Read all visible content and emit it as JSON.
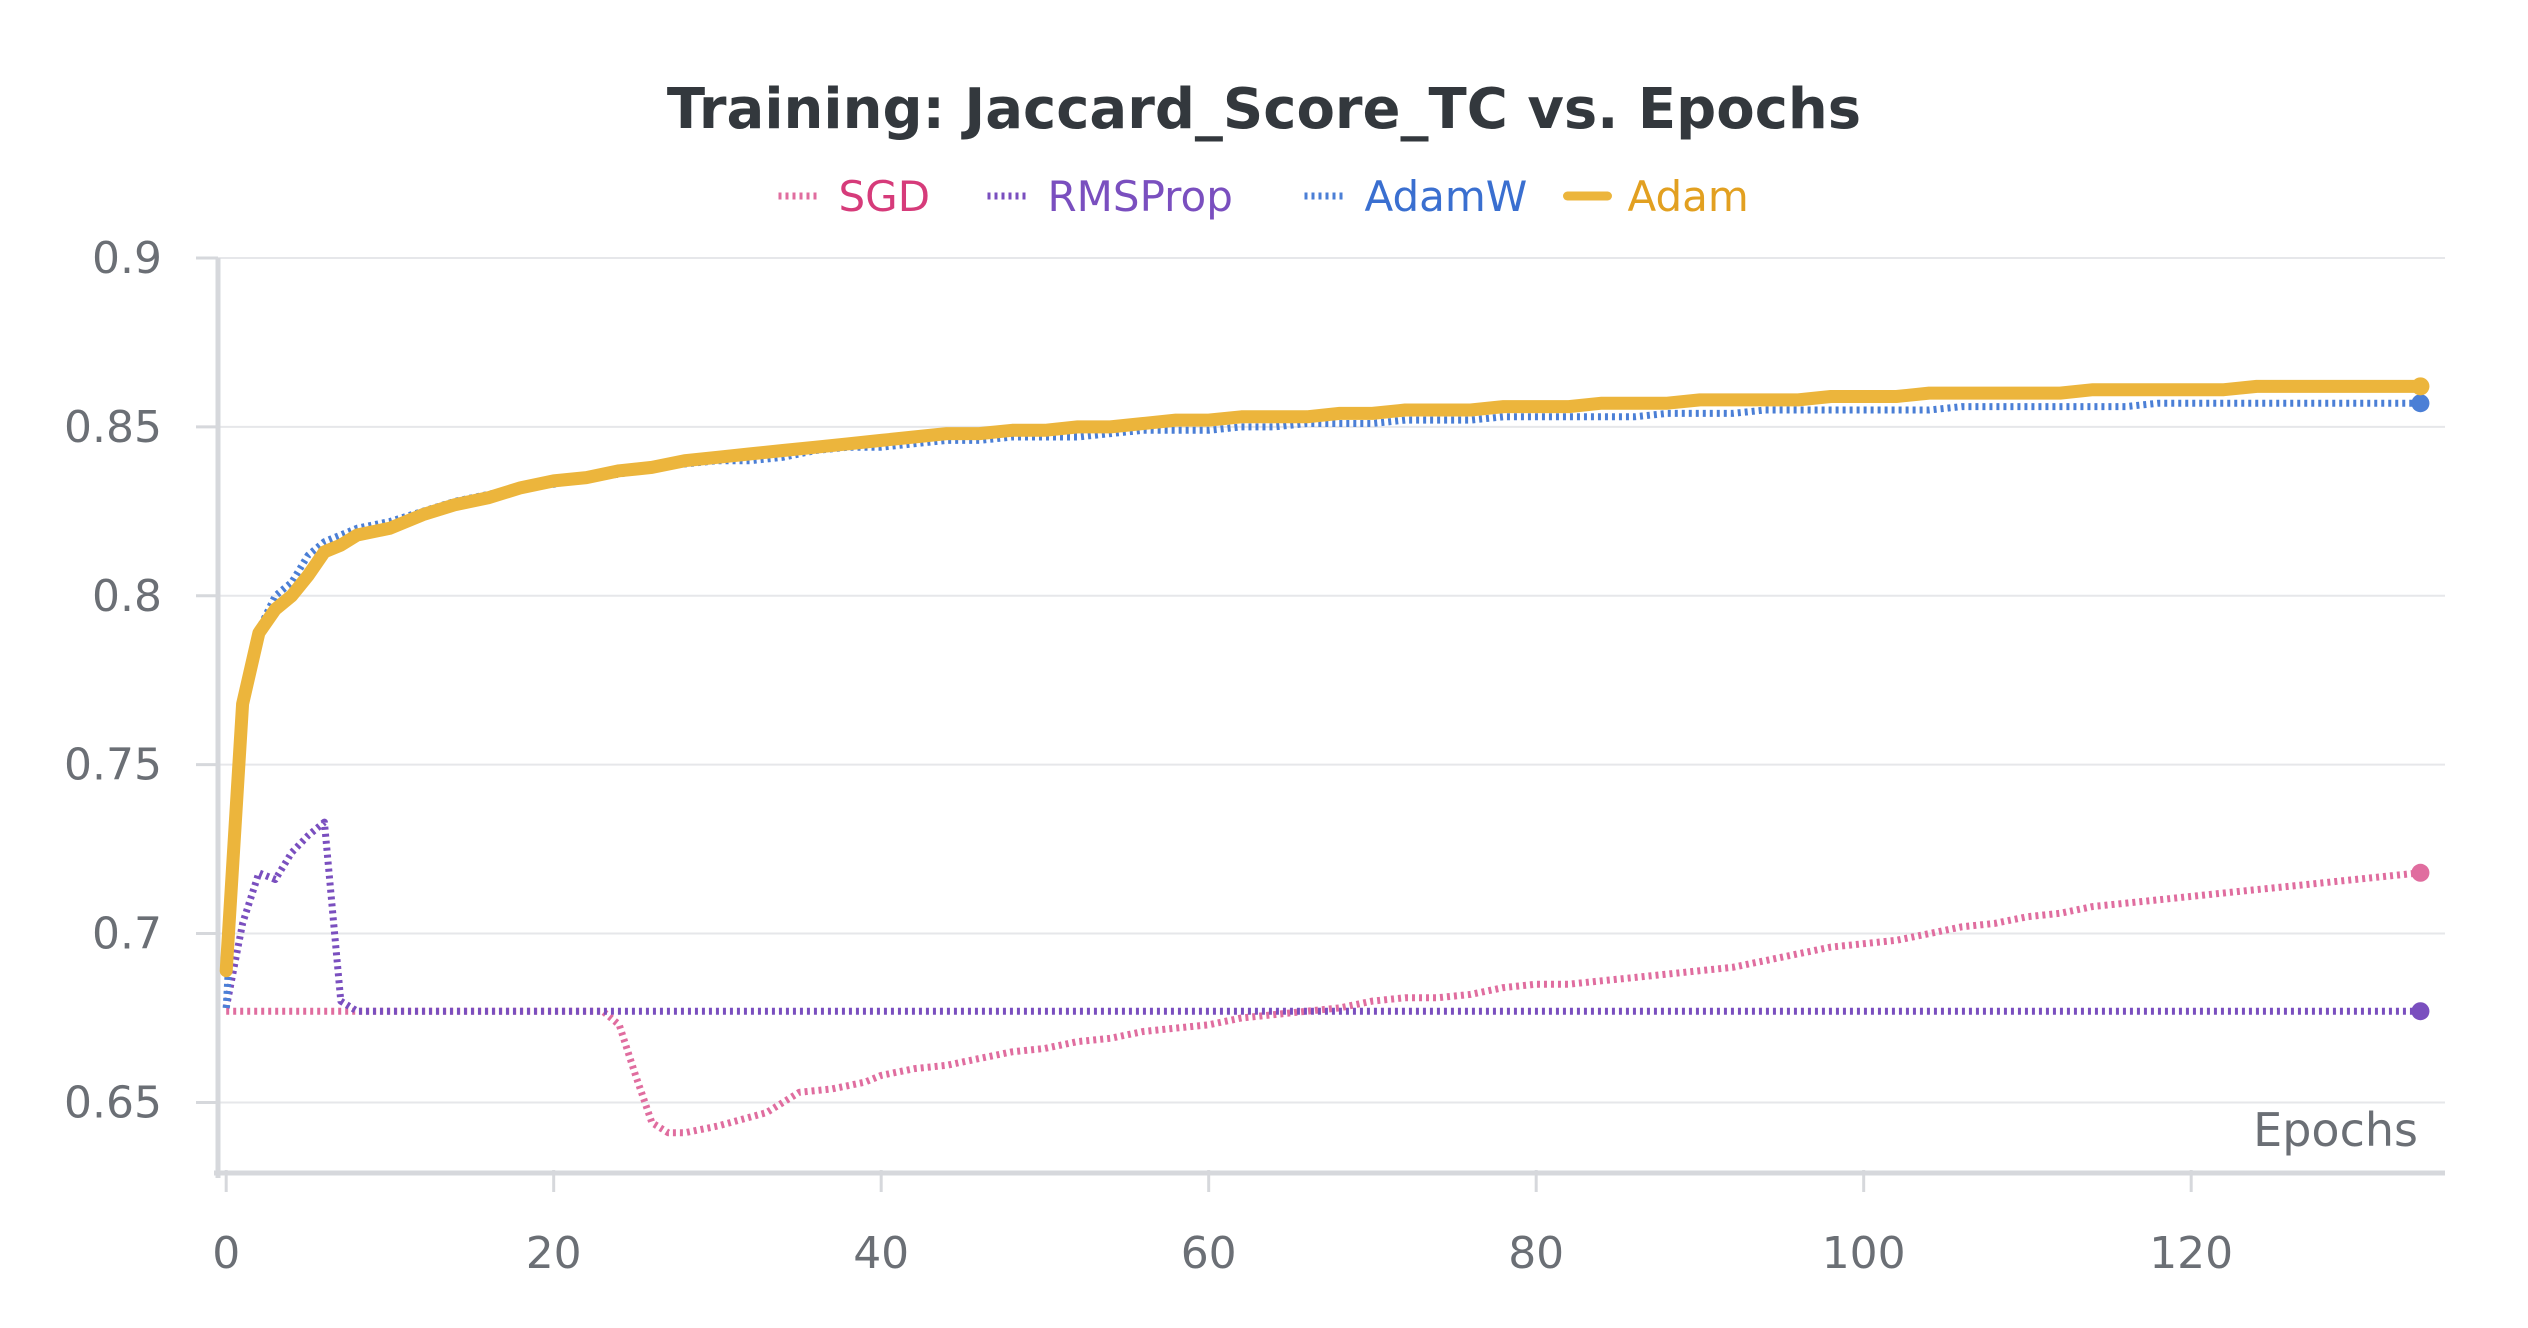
{
  "chart_data": {
    "type": "line",
    "title": "Training: Jaccard_Score_TC vs. Epochs",
    "xlabel": "Epochs",
    "ylabel": "",
    "xlim": [
      -0.5,
      135.5
    ],
    "ylim": [
      0.63,
      0.9
    ],
    "x_ticks": [
      0,
      20,
      40,
      60,
      80,
      100,
      120
    ],
    "y_ticks": [
      0.65,
      0.7,
      0.75,
      0.8,
      0.85,
      0.9
    ],
    "x_tick_labels": [
      "0",
      "20",
      "40",
      "60",
      "80",
      "100",
      "120"
    ],
    "y_tick_labels": [
      "0.65",
      "0.7",
      "0.75",
      "0.8",
      "0.85",
      "0.9"
    ],
    "grid": true,
    "legend_position": "top",
    "series": [
      {
        "name": "SGD",
        "color": "#e06d9f",
        "label_color": "#d63b7a",
        "style": "dotted",
        "points": [
          [
            0,
            0.677
          ],
          [
            10,
            0.677
          ],
          [
            20,
            0.677
          ],
          [
            23,
            0.677
          ],
          [
            24,
            0.673
          ],
          [
            25,
            0.658
          ],
          [
            26,
            0.644
          ],
          [
            27,
            0.641
          ],
          [
            28,
            0.641
          ],
          [
            30,
            0.643
          ],
          [
            33,
            0.647
          ],
          [
            35,
            0.653
          ],
          [
            37,
            0.654
          ],
          [
            39,
            0.656
          ],
          [
            40,
            0.658
          ],
          [
            42,
            0.66
          ],
          [
            44,
            0.661
          ],
          [
            46,
            0.663
          ],
          [
            48,
            0.665
          ],
          [
            50,
            0.666
          ],
          [
            52,
            0.668
          ],
          [
            54,
            0.669
          ],
          [
            56,
            0.671
          ],
          [
            58,
            0.672
          ],
          [
            60,
            0.673
          ],
          [
            62,
            0.675
          ],
          [
            64,
            0.676
          ],
          [
            66,
            0.677
          ],
          [
            68,
            0.678
          ],
          [
            70,
            0.68
          ],
          [
            72,
            0.681
          ],
          [
            74,
            0.681
          ],
          [
            76,
            0.682
          ],
          [
            78,
            0.684
          ],
          [
            80,
            0.685
          ],
          [
            82,
            0.685
          ],
          [
            84,
            0.686
          ],
          [
            86,
            0.687
          ],
          [
            88,
            0.688
          ],
          [
            90,
            0.689
          ],
          [
            92,
            0.69
          ],
          [
            94,
            0.692
          ],
          [
            96,
            0.694
          ],
          [
            98,
            0.696
          ],
          [
            100,
            0.697
          ],
          [
            102,
            0.698
          ],
          [
            104,
            0.7
          ],
          [
            106,
            0.702
          ],
          [
            108,
            0.703
          ],
          [
            110,
            0.705
          ],
          [
            112,
            0.706
          ],
          [
            114,
            0.708
          ],
          [
            116,
            0.709
          ],
          [
            118,
            0.71
          ],
          [
            120,
            0.711
          ],
          [
            122,
            0.712
          ],
          [
            124,
            0.713
          ],
          [
            126,
            0.714
          ],
          [
            128,
            0.715
          ],
          [
            130,
            0.716
          ],
          [
            132,
            0.717
          ],
          [
            134,
            0.718
          ]
        ]
      },
      {
        "name": "RMSProp",
        "color": "#7a4fbf",
        "label_color": "#7a4fbf",
        "style": "dotted",
        "points": [
          [
            0,
            0.678
          ],
          [
            1,
            0.703
          ],
          [
            2,
            0.718
          ],
          [
            3,
            0.716
          ],
          [
            4,
            0.724
          ],
          [
            5,
            0.729
          ],
          [
            6,
            0.733
          ],
          [
            7,
            0.68
          ],
          [
            8,
            0.677
          ],
          [
            20,
            0.677
          ],
          [
            40,
            0.677
          ],
          [
            60,
            0.677
          ],
          [
            80,
            0.677
          ],
          [
            100,
            0.677
          ],
          [
            120,
            0.677
          ],
          [
            134,
            0.677
          ]
        ]
      },
      {
        "name": "AdamW",
        "color": "#4b7fd6",
        "label_color": "#3a6fd0",
        "style": "dotted",
        "points": [
          [
            0,
            0.678
          ],
          [
            1,
            0.765
          ],
          [
            2,
            0.79
          ],
          [
            3,
            0.8
          ],
          [
            4,
            0.804
          ],
          [
            5,
            0.812
          ],
          [
            6,
            0.816
          ],
          [
            7,
            0.818
          ],
          [
            8,
            0.82
          ],
          [
            10,
            0.822
          ],
          [
            12,
            0.825
          ],
          [
            14,
            0.828
          ],
          [
            16,
            0.83
          ],
          [
            18,
            0.832
          ],
          [
            20,
            0.833
          ],
          [
            22,
            0.835
          ],
          [
            24,
            0.836
          ],
          [
            26,
            0.838
          ],
          [
            28,
            0.839
          ],
          [
            30,
            0.84
          ],
          [
            32,
            0.84
          ],
          [
            34,
            0.841
          ],
          [
            36,
            0.843
          ],
          [
            38,
            0.844
          ],
          [
            40,
            0.844
          ],
          [
            42,
            0.845
          ],
          [
            44,
            0.846
          ],
          [
            46,
            0.846
          ],
          [
            48,
            0.847
          ],
          [
            50,
            0.847
          ],
          [
            52,
            0.847
          ],
          [
            54,
            0.848
          ],
          [
            56,
            0.849
          ],
          [
            58,
            0.849
          ],
          [
            60,
            0.849
          ],
          [
            62,
            0.85
          ],
          [
            64,
            0.85
          ],
          [
            66,
            0.851
          ],
          [
            68,
            0.851
          ],
          [
            70,
            0.851
          ],
          [
            72,
            0.852
          ],
          [
            74,
            0.852
          ],
          [
            76,
            0.852
          ],
          [
            78,
            0.853
          ],
          [
            80,
            0.853
          ],
          [
            82,
            0.853
          ],
          [
            84,
            0.853
          ],
          [
            86,
            0.853
          ],
          [
            88,
            0.854
          ],
          [
            90,
            0.854
          ],
          [
            92,
            0.854
          ],
          [
            94,
            0.855
          ],
          [
            96,
            0.855
          ],
          [
            98,
            0.855
          ],
          [
            100,
            0.855
          ],
          [
            102,
            0.855
          ],
          [
            104,
            0.855
          ],
          [
            106,
            0.856
          ],
          [
            108,
            0.856
          ],
          [
            110,
            0.856
          ],
          [
            112,
            0.856
          ],
          [
            114,
            0.856
          ],
          [
            116,
            0.856
          ],
          [
            118,
            0.857
          ],
          [
            120,
            0.857
          ],
          [
            122,
            0.857
          ],
          [
            124,
            0.857
          ],
          [
            126,
            0.857
          ],
          [
            128,
            0.857
          ],
          [
            130,
            0.857
          ],
          [
            132,
            0.857
          ],
          [
            134,
            0.857
          ]
        ]
      },
      {
        "name": "Adam",
        "color": "#ecb53c",
        "label_color": "#e2a020",
        "style": "solid",
        "points": [
          [
            0,
            0.689
          ],
          [
            1,
            0.768
          ],
          [
            2,
            0.789
          ],
          [
            3,
            0.796
          ],
          [
            4,
            0.8
          ],
          [
            5,
            0.806
          ],
          [
            6,
            0.813
          ],
          [
            7,
            0.815
          ],
          [
            8,
            0.818
          ],
          [
            10,
            0.82
          ],
          [
            12,
            0.824
          ],
          [
            14,
            0.827
          ],
          [
            16,
            0.829
          ],
          [
            18,
            0.832
          ],
          [
            20,
            0.834
          ],
          [
            22,
            0.835
          ],
          [
            24,
            0.837
          ],
          [
            26,
            0.838
          ],
          [
            28,
            0.84
          ],
          [
            30,
            0.841
          ],
          [
            32,
            0.842
          ],
          [
            34,
            0.843
          ],
          [
            36,
            0.844
          ],
          [
            38,
            0.845
          ],
          [
            40,
            0.846
          ],
          [
            42,
            0.847
          ],
          [
            44,
            0.848
          ],
          [
            46,
            0.848
          ],
          [
            48,
            0.849
          ],
          [
            50,
            0.849
          ],
          [
            52,
            0.85
          ],
          [
            54,
            0.85
          ],
          [
            56,
            0.851
          ],
          [
            58,
            0.852
          ],
          [
            60,
            0.852
          ],
          [
            62,
            0.853
          ],
          [
            64,
            0.853
          ],
          [
            66,
            0.853
          ],
          [
            68,
            0.854
          ],
          [
            70,
            0.854
          ],
          [
            72,
            0.855
          ],
          [
            74,
            0.855
          ],
          [
            76,
            0.855
          ],
          [
            78,
            0.856
          ],
          [
            80,
            0.856
          ],
          [
            82,
            0.856
          ],
          [
            84,
            0.857
          ],
          [
            86,
            0.857
          ],
          [
            88,
            0.857
          ],
          [
            90,
            0.858
          ],
          [
            92,
            0.858
          ],
          [
            94,
            0.858
          ],
          [
            96,
            0.858
          ],
          [
            98,
            0.859
          ],
          [
            100,
            0.859
          ],
          [
            102,
            0.859
          ],
          [
            104,
            0.86
          ],
          [
            106,
            0.86
          ],
          [
            108,
            0.86
          ],
          [
            110,
            0.86
          ],
          [
            112,
            0.86
          ],
          [
            114,
            0.861
          ],
          [
            116,
            0.861
          ],
          [
            118,
            0.861
          ],
          [
            120,
            0.861
          ],
          [
            122,
            0.861
          ],
          [
            124,
            0.862
          ],
          [
            126,
            0.862
          ],
          [
            128,
            0.862
          ],
          [
            130,
            0.862
          ],
          [
            132,
            0.862
          ],
          [
            134,
            0.862
          ]
        ]
      }
    ]
  }
}
